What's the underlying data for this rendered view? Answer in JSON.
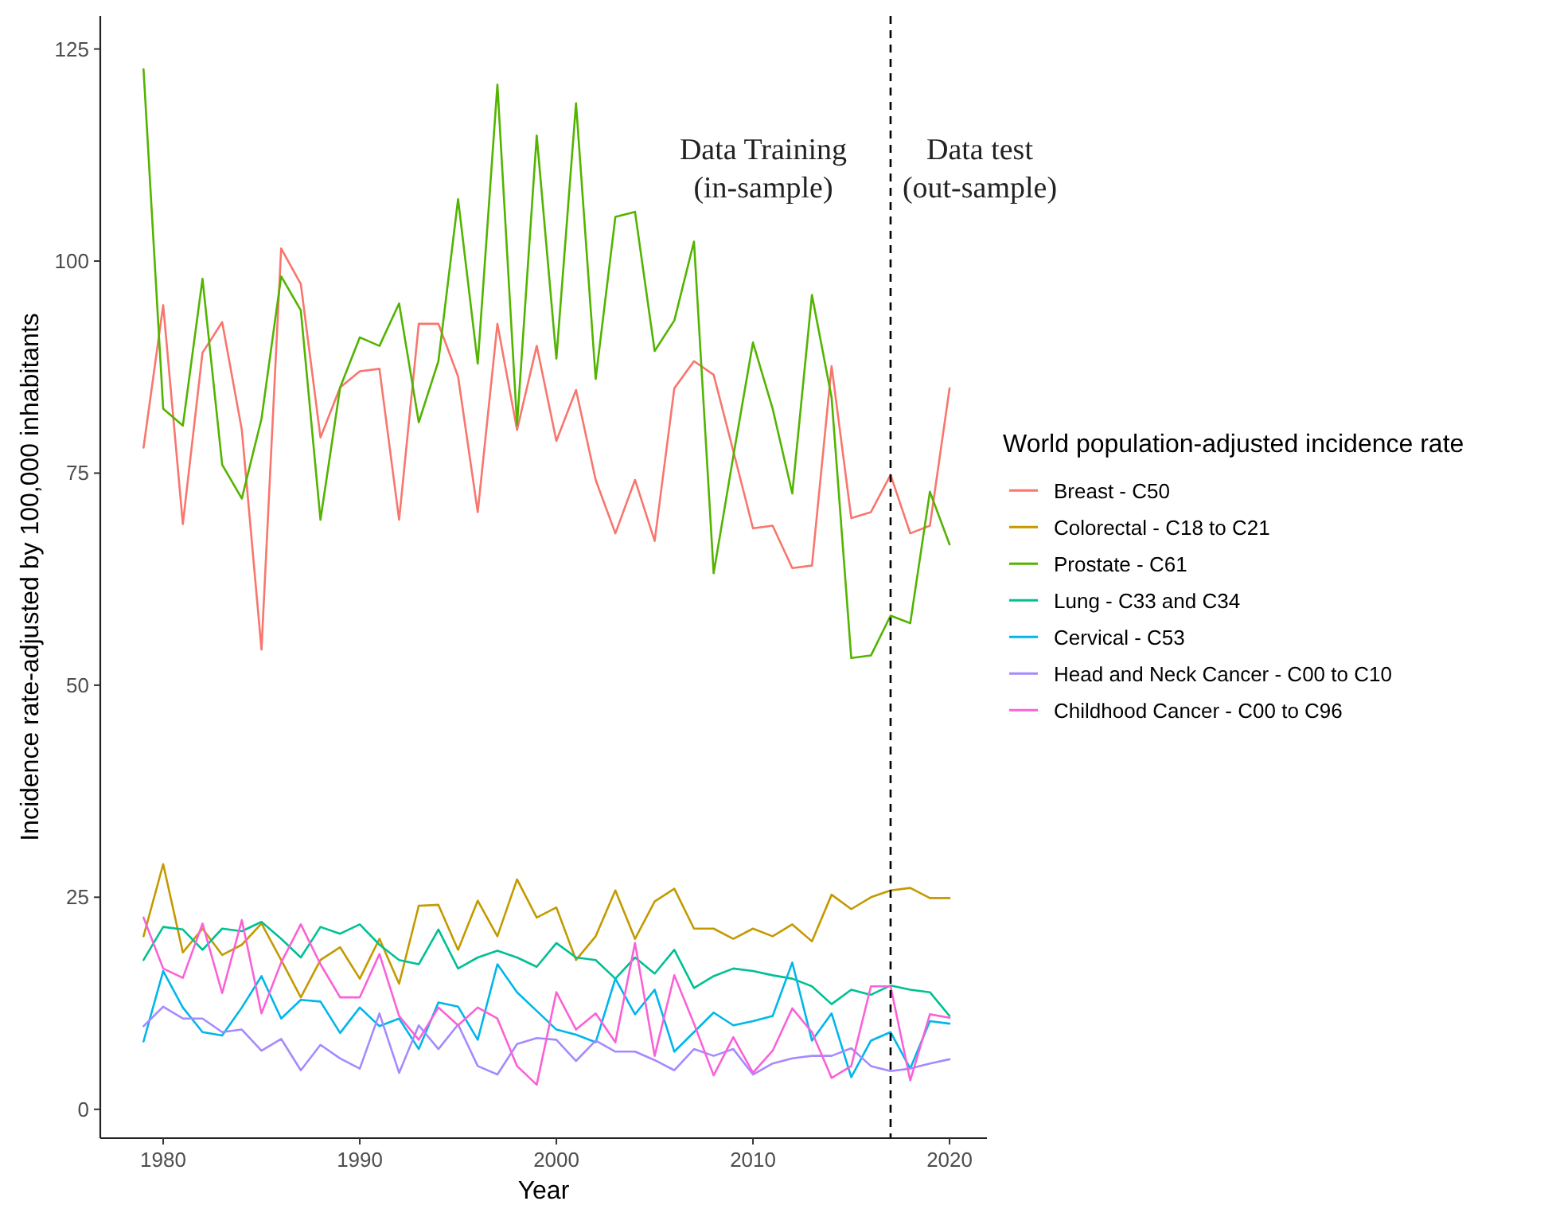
{
  "chart_data": {
    "type": "line",
    "xlabel": "Year",
    "ylabel": "Incidence rate-adjusted by 100,000 inhabitants",
    "legend_title": "World population-adjusted incidence rate",
    "legend": "right",
    "grid": false,
    "line_style": "solid",
    "x": [
      1979,
      1980,
      1981,
      1982,
      1983,
      1984,
      1985,
      1986,
      1987,
      1988,
      1989,
      1990,
      1991,
      1992,
      1993,
      1994,
      1995,
      1996,
      1997,
      1998,
      1999,
      2000,
      2001,
      2002,
      2003,
      2004,
      2005,
      2006,
      2007,
      2008,
      2009,
      2010,
      2011,
      2012,
      2013,
      2014,
      2015,
      2016,
      2017,
      2018,
      2019,
      2020
    ],
    "xlim": [
      1976.8,
      2021.9
    ],
    "xticks": [
      1980,
      1990,
      2000,
      2010,
      2020
    ],
    "ylim": [
      -3.4,
      128.9
    ],
    "yticks": [
      0,
      25,
      50,
      75,
      100,
      125
    ],
    "ref_lines": [
      {
        "axis": "x",
        "value": 2017,
        "line_style": "dashed",
        "color": "#000000"
      }
    ],
    "annotations": [
      "Data Training\n(in-sample)",
      "Data test\n(out-sample)"
    ],
    "series": [
      {
        "name": "Breast - C50",
        "color": "#F8766D",
        "values": [
          78,
          94.8,
          69,
          89.2,
          92.8,
          80.1,
          54.2,
          101.5,
          97.3,
          79.2,
          85.1,
          87,
          87.3,
          69.5,
          92.6,
          92.6,
          86.4,
          70.4,
          92.6,
          80.1,
          90,
          78.8,
          84.8,
          74.2,
          67.9,
          74.2,
          67,
          85,
          88.2,
          86.6,
          77.6,
          68.5,
          68.8,
          63.8,
          64.1,
          87.6,
          69.7,
          70.4,
          74.8,
          67.9,
          68.8,
          85
        ]
      },
      {
        "name": "Colorectal - C18 to C21",
        "color": "#C49A00",
        "values": [
          20.4,
          28.9,
          18.5,
          21.3,
          18.2,
          19.4,
          21.9,
          17.6,
          13.2,
          17.6,
          19.1,
          15.4,
          20.1,
          14.8,
          24,
          24.1,
          18.8,
          24.6,
          20.4,
          27.1,
          22.6,
          23.8,
          17.6,
          20.4,
          25.8,
          20.1,
          24.5,
          26,
          21.3,
          21.3,
          20.1,
          21.3,
          20.4,
          21.8,
          19.8,
          25.3,
          23.6,
          25,
          25.8,
          26.1,
          24.9,
          24.9
        ]
      },
      {
        "name": "Prostate - C61",
        "color": "#53B400",
        "values": [
          122.6,
          82.6,
          80.6,
          97.9,
          76,
          72,
          81.4,
          98.2,
          94.2,
          69.5,
          85.1,
          91,
          90,
          95,
          81,
          88.2,
          107.3,
          87.9,
          120.8,
          80.7,
          114.8,
          88.5,
          118.6,
          86.1,
          105.2,
          105.8,
          89.4,
          93,
          102.3,
          63.2,
          77,
          90.4,
          82.6,
          72.6,
          96,
          83.9,
          53.2,
          53.5,
          58.2,
          57.3,
          72.8,
          66.6
        ]
      },
      {
        "name": "Lung - C33 and C34",
        "color": "#00C094",
        "values": [
          17.6,
          21.5,
          21.2,
          18.8,
          21.3,
          21,
          22.1,
          20.1,
          17.9,
          21.5,
          20.7,
          21.8,
          19.4,
          17.6,
          17.1,
          21.2,
          16.6,
          17.9,
          18.7,
          17.9,
          16.8,
          19.6,
          17.9,
          17.6,
          15.4,
          17.9,
          16,
          18.8,
          14.3,
          15.7,
          16.6,
          16.3,
          15.8,
          15.4,
          14.5,
          12.4,
          14.1,
          13.5,
          14.6,
          14.1,
          13.8,
          11
        ]
      },
      {
        "name": "Cervical - C53",
        "color": "#00B6EB",
        "values": [
          8,
          16.3,
          12,
          9.1,
          8.7,
          12,
          15.7,
          10.7,
          12.9,
          12.7,
          9,
          12,
          9.8,
          10.7,
          7.1,
          12.6,
          12.1,
          8.2,
          17.1,
          13.8,
          11.6,
          9.4,
          8.8,
          7.9,
          15.4,
          11.2,
          14.1,
          6.8,
          9.1,
          11.4,
          9.9,
          10.4,
          11,
          17.3,
          8.1,
          11.3,
          3.8,
          8.1,
          9.1,
          4.8,
          10.4,
          10.1
        ]
      },
      {
        "name": "Head and Neck Cancer - C00 to C10",
        "color": "#A58AFF",
        "values": [
          9.8,
          12.1,
          10.7,
          10.7,
          9.1,
          9.4,
          6.9,
          8.3,
          4.6,
          7.6,
          6,
          4.8,
          11.3,
          4.3,
          9.9,
          7.1,
          10,
          5.1,
          4.1,
          7.7,
          8.4,
          8.2,
          5.7,
          8.1,
          6.8,
          6.8,
          5.8,
          4.6,
          7.1,
          6.3,
          7.1,
          4.1,
          5.4,
          6,
          6.3,
          6.3,
          7.2,
          5.1,
          4.5,
          4.8,
          5.4,
          5.9
        ]
      },
      {
        "name": "Childhood Cancer - C00 to C96",
        "color": "#FB61D7",
        "values": [
          22.6,
          16.6,
          15.5,
          21.9,
          13.7,
          22.3,
          11.3,
          17.3,
          21.8,
          17.1,
          13.2,
          13.2,
          18.3,
          11,
          8.2,
          12,
          9.9,
          12,
          10.7,
          5.1,
          2.9,
          13.8,
          9.4,
          11.3,
          7.9,
          19.6,
          6.3,
          15.8,
          10.1,
          4,
          8.5,
          4.3,
          6.9,
          11.9,
          9.1,
          3.7,
          5.1,
          14.5,
          14.5,
          3.4,
          11.2,
          10.8
        ]
      }
    ]
  }
}
